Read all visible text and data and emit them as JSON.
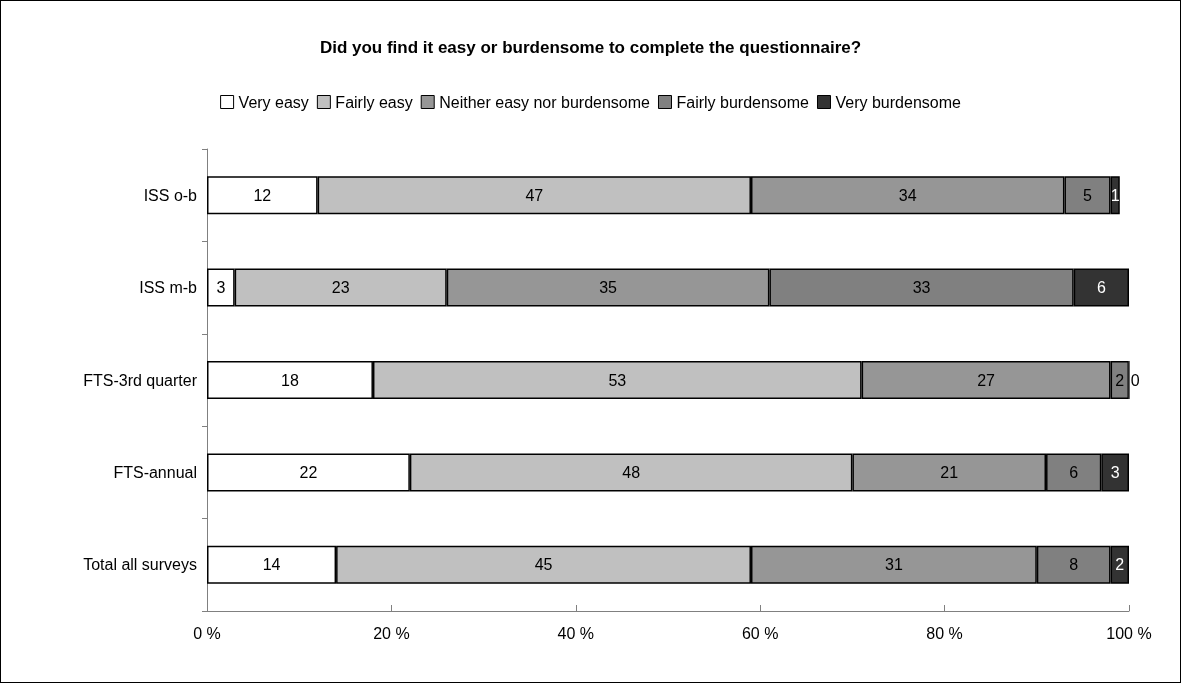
{
  "chart_data": {
    "type": "bar",
    "orientation": "horizontal",
    "stacked": true,
    "title": "Did you find it easy or burdensome to complete the questionnaire?",
    "categories": [
      "ISS o-b",
      "ISS m-b",
      "FTS-3rd quarter",
      "FTS-annual",
      "Total all surveys"
    ],
    "series": [
      {
        "name": "Very easy",
        "color": "#ffffff",
        "values": [
          12,
          3,
          18,
          22,
          14
        ]
      },
      {
        "name": "Fairly easy",
        "color": "#c0c0c0",
        "values": [
          47,
          23,
          53,
          48,
          45
        ]
      },
      {
        "name": "Neither easy nor burdensome",
        "color": "#969696",
        "values": [
          34,
          35,
          27,
          21,
          31
        ]
      },
      {
        "name": "Fairly burdensome",
        "color": "#808080",
        "values": [
          5,
          33,
          2,
          6,
          8
        ]
      },
      {
        "name": "Very burdensome",
        "color": "#333333",
        "values": [
          1,
          6,
          0,
          3,
          2
        ]
      }
    ],
    "xlim": [
      0,
      100
    ],
    "xticks": [
      {
        "value": 0,
        "label": "0 %"
      },
      {
        "value": 20,
        "label": "20 %"
      },
      {
        "value": 40,
        "label": "40 %"
      },
      {
        "value": 60,
        "label": "60 %"
      },
      {
        "value": 80,
        "label": "80 %"
      },
      {
        "value": 100,
        "label": "100 %"
      }
    ],
    "data_labels": true,
    "legend": "top",
    "grid": false
  }
}
